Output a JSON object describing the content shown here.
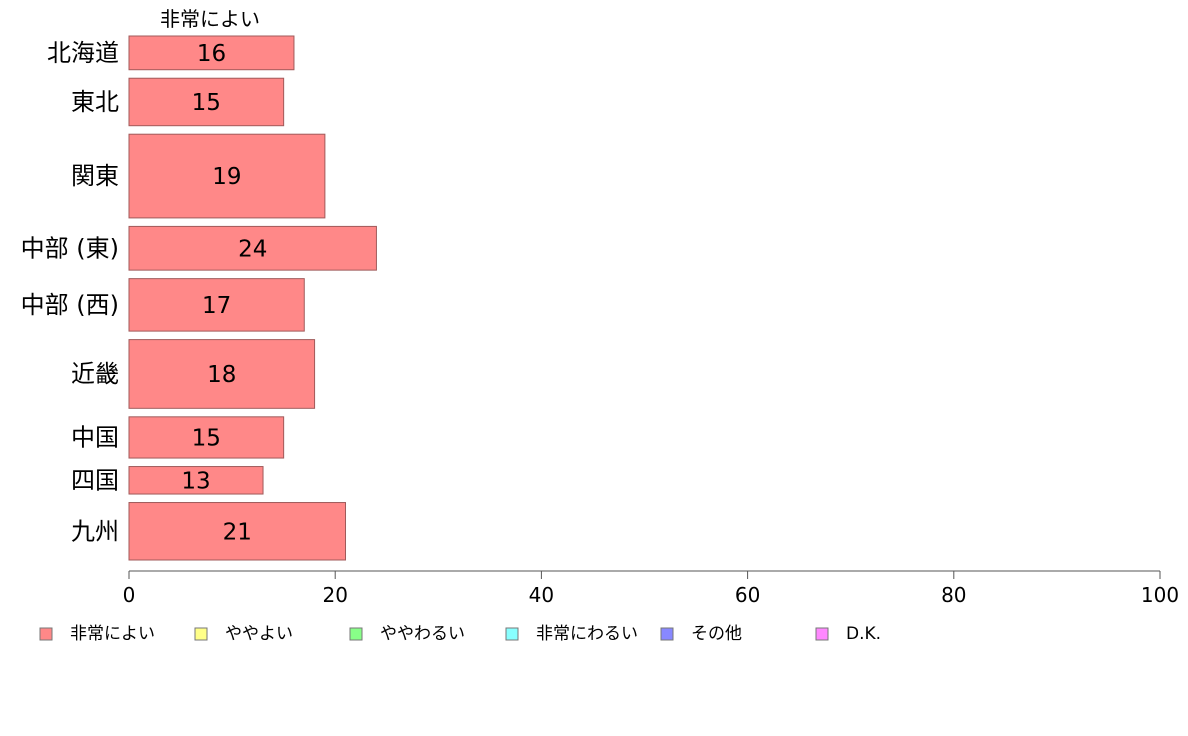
{
  "chart_data": {
    "type": "bar",
    "orientation": "horizontal",
    "stacked": true,
    "categories": [
      "北海道",
      "東北",
      "関東",
      "中部 (東)",
      "中部 (西)",
      "近畿",
      "中国",
      "四国",
      "九州"
    ],
    "series": [
      {
        "name": "非常によい",
        "color": "#ff8888",
        "values": [
          16,
          15,
          19,
          24,
          17,
          18,
          15,
          13,
          21
        ]
      },
      {
        "name": "ややよい",
        "color": "#ffff88",
        "values": [
          null,
          null,
          null,
          null,
          null,
          null,
          null,
          null,
          null
        ]
      },
      {
        "name": "ややわるい",
        "color": "#88ff88",
        "values": [
          null,
          null,
          null,
          null,
          null,
          null,
          null,
          null,
          null
        ]
      },
      {
        "name": "非常にわるい",
        "color": "#88ffff",
        "values": [
          null,
          null,
          null,
          null,
          null,
          null,
          null,
          null,
          null
        ]
      },
      {
        "name": "その他",
        "color": "#8888ff",
        "values": [
          null,
          null,
          null,
          null,
          null,
          null,
          null,
          null,
          null
        ]
      },
      {
        "name": "D.K.",
        "color": "#ff88ff",
        "values": [
          null,
          null,
          null,
          null,
          null,
          null,
          null,
          null,
          null
        ]
      }
    ],
    "series_header": "非常によい",
    "data_labels": [
      "16",
      "15",
      "19",
      "24",
      "17",
      "18",
      "15",
      "13",
      "21"
    ],
    "xlim": [
      0,
      100
    ],
    "x_ticks": [
      0,
      20,
      40,
      60,
      80,
      100
    ],
    "tick_labels": [
      "0",
      "20",
      "40",
      "60",
      "80",
      "100"
    ],
    "bar_weights": [
      1.35,
      1.9,
      3.35,
      1.75,
      2.1,
      2.75,
      1.65,
      1.1,
      2.3
    ],
    "grid": false,
    "legend_position": "bottom",
    "title": "",
    "xlabel": "",
    "ylabel": ""
  }
}
